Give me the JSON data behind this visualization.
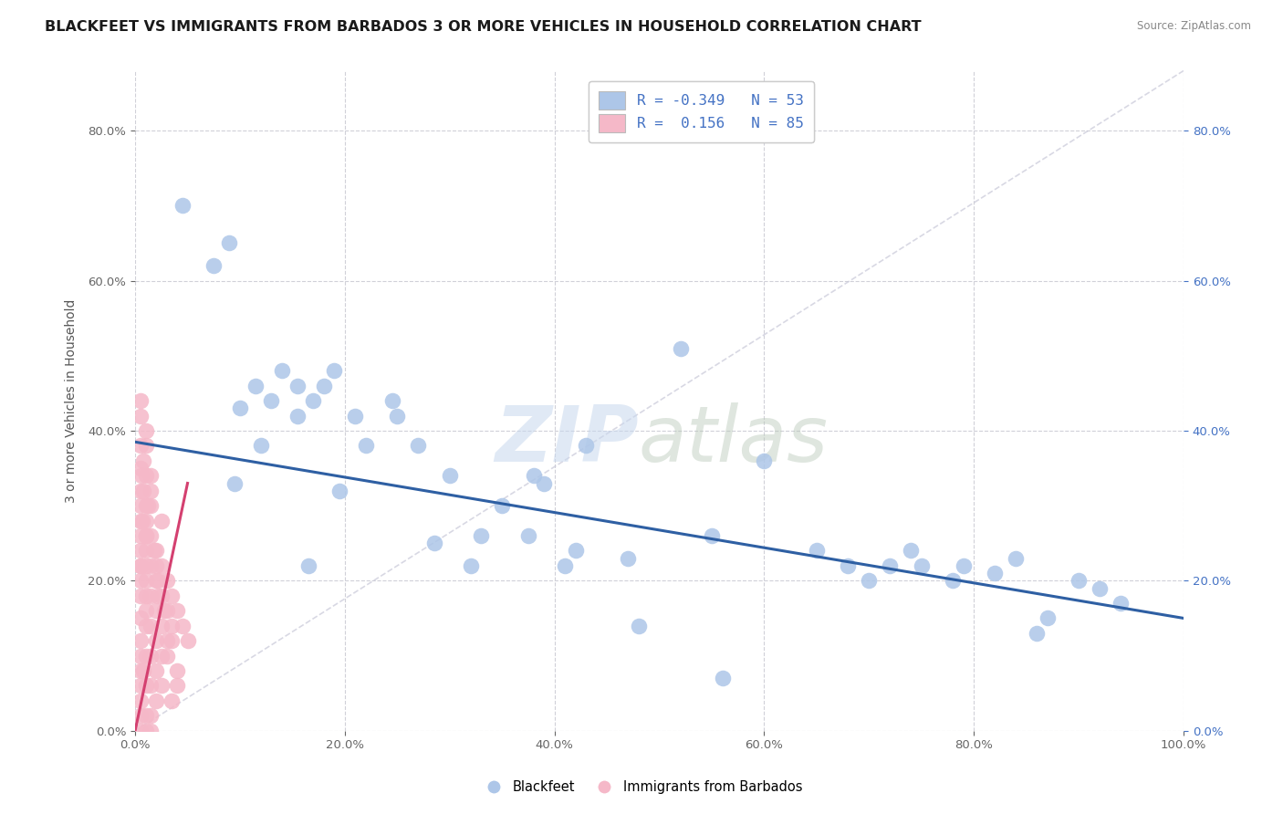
{
  "title": "BLACKFEET VS IMMIGRANTS FROM BARBADOS 3 OR MORE VEHICLES IN HOUSEHOLD CORRELATION CHART",
  "source": "Source: ZipAtlas.com",
  "ylabel": "3 or more Vehicles in Household",
  "watermark_zip": "ZIP",
  "watermark_atlas": "atlas",
  "legend_text1": "R = -0.349   N = 53",
  "legend_text2": "R =  0.156   N = 85",
  "label1": "Blackfeet",
  "label2": "Immigrants from Barbados",
  "color1": "#adc6e8",
  "color2": "#f5b8c8",
  "trendline1_color": "#2e5fa3",
  "trendline2_color": "#d44070",
  "refline_color": "#c8c8d8",
  "xlim": [
    0.0,
    1.0
  ],
  "ylim": [
    0.0,
    0.88
  ],
  "xticks": [
    0.0,
    0.2,
    0.4,
    0.6,
    0.8,
    1.0
  ],
  "yticks": [
    0.0,
    0.2,
    0.4,
    0.6,
    0.8
  ],
  "blue_x": [
    0.045,
    0.075,
    0.09,
    0.1,
    0.12,
    0.115,
    0.13,
    0.14,
    0.155,
    0.155,
    0.17,
    0.18,
    0.19,
    0.195,
    0.21,
    0.22,
    0.245,
    0.25,
    0.27,
    0.3,
    0.32,
    0.33,
    0.35,
    0.38,
    0.39,
    0.41,
    0.42,
    0.43,
    0.48,
    0.52,
    0.55,
    0.6,
    0.65,
    0.68,
    0.7,
    0.72,
    0.74,
    0.75,
    0.78,
    0.79,
    0.82,
    0.84,
    0.86,
    0.87,
    0.9,
    0.92,
    0.94,
    0.095,
    0.165,
    0.285,
    0.375,
    0.47,
    0.56
  ],
  "blue_y": [
    0.7,
    0.62,
    0.65,
    0.43,
    0.38,
    0.46,
    0.44,
    0.48,
    0.42,
    0.46,
    0.44,
    0.46,
    0.48,
    0.32,
    0.42,
    0.38,
    0.44,
    0.42,
    0.38,
    0.34,
    0.22,
    0.26,
    0.3,
    0.34,
    0.33,
    0.22,
    0.24,
    0.38,
    0.14,
    0.51,
    0.26,
    0.36,
    0.24,
    0.22,
    0.2,
    0.22,
    0.24,
    0.22,
    0.2,
    0.22,
    0.21,
    0.23,
    0.13,
    0.15,
    0.2,
    0.19,
    0.17,
    0.33,
    0.22,
    0.25,
    0.26,
    0.23,
    0.07
  ],
  "pink_x": [
    0.005,
    0.005,
    0.005,
    0.005,
    0.005,
    0.005,
    0.005,
    0.005,
    0.005,
    0.005,
    0.005,
    0.005,
    0.005,
    0.005,
    0.005,
    0.005,
    0.005,
    0.005,
    0.005,
    0.005,
    0.01,
    0.01,
    0.01,
    0.01,
    0.01,
    0.01,
    0.01,
    0.01,
    0.01,
    0.01,
    0.01,
    0.01,
    0.01,
    0.01,
    0.01,
    0.015,
    0.015,
    0.015,
    0.015,
    0.015,
    0.015,
    0.015,
    0.015,
    0.015,
    0.02,
    0.02,
    0.02,
    0.02,
    0.02,
    0.02,
    0.025,
    0.025,
    0.025,
    0.025,
    0.025,
    0.03,
    0.03,
    0.035,
    0.035,
    0.04,
    0.045,
    0.05,
    0.04,
    0.03,
    0.035,
    0.015,
    0.01,
    0.008,
    0.007,
    0.006,
    0.005,
    0.015,
    0.025,
    0.02,
    0.01,
    0.008,
    0.022,
    0.018,
    0.012,
    0.03,
    0.04,
    0.035,
    0.028,
    0.022,
    0.008
  ],
  "pink_y": [
    0.42,
    0.38,
    0.35,
    0.32,
    0.28,
    0.24,
    0.22,
    0.2,
    0.18,
    0.15,
    0.12,
    0.1,
    0.08,
    0.06,
    0.04,
    0.02,
    0.0,
    0.3,
    0.26,
    0.22,
    0.38,
    0.34,
    0.3,
    0.26,
    0.22,
    0.18,
    0.14,
    0.1,
    0.06,
    0.02,
    0.0,
    0.28,
    0.24,
    0.2,
    0.16,
    0.3,
    0.26,
    0.22,
    0.18,
    0.14,
    0.1,
    0.06,
    0.02,
    0.0,
    0.24,
    0.2,
    0.16,
    0.12,
    0.08,
    0.04,
    0.22,
    0.18,
    0.14,
    0.1,
    0.06,
    0.2,
    0.16,
    0.18,
    0.14,
    0.16,
    0.14,
    0.12,
    0.08,
    0.12,
    0.04,
    0.32,
    0.4,
    0.36,
    0.28,
    0.34,
    0.44,
    0.34,
    0.28,
    0.22,
    0.26,
    0.32,
    0.18,
    0.24,
    0.3,
    0.1,
    0.06,
    0.12,
    0.16,
    0.2,
    0.08
  ],
  "background_color": "#ffffff",
  "grid_color": "#d0d0d8",
  "title_fontsize": 11.5,
  "tick_fontsize": 9.5,
  "ylabel_fontsize": 10
}
